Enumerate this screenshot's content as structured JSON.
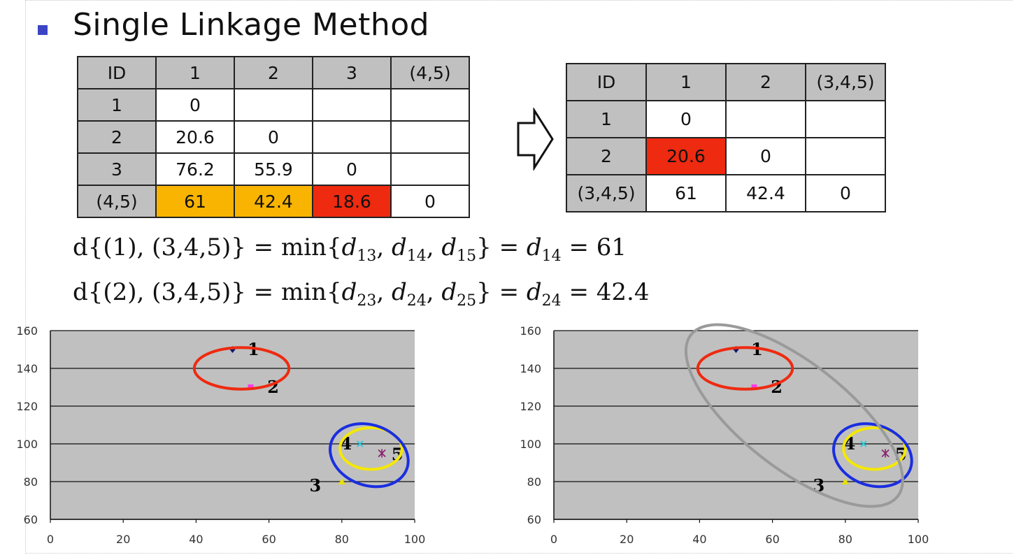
{
  "title": "Single Linkage Method",
  "table1": {
    "header": [
      "ID",
      "1",
      "2",
      "3",
      "(4,5)"
    ],
    "rows": [
      [
        "1",
        "0",
        "",
        "",
        ""
      ],
      [
        "2",
        "20.6",
        "0",
        "",
        ""
      ],
      [
        "3",
        "76.2",
        "55.9",
        "0",
        ""
      ],
      [
        "(4,5)",
        "61",
        "42.4",
        "18.6",
        "0"
      ]
    ]
  },
  "table2": {
    "header": [
      "ID",
      "1",
      "2",
      "(3,4,5)"
    ],
    "rows": [
      [
        "1",
        "0",
        "",
        ""
      ],
      [
        "2",
        "20.6",
        "0",
        ""
      ],
      [
        "(3,4,5)",
        "61",
        "42.4",
        "0"
      ]
    ]
  },
  "equations": {
    "eq1": {
      "lhs": "d{(1), (3,4,5)} = min{",
      "terms": [
        {
          "v": "d",
          "s": "13"
        },
        {
          "v": "d",
          "s": "14"
        },
        {
          "v": "d",
          "s": "15"
        }
      ],
      "mid": "} = ",
      "result": {
        "v": "d",
        "s": "14"
      },
      "value": "= 61"
    },
    "eq2": {
      "lhs": "d{(2), (3,4,5)} = min{",
      "terms": [
        {
          "v": "d",
          "s": "23"
        },
        {
          "v": "d",
          "s": "24"
        },
        {
          "v": "d",
          "s": "25"
        }
      ],
      "mid": "} = ",
      "result": {
        "v": "d",
        "s": "24"
      },
      "value": "= 42.4"
    }
  },
  "colors": {
    "highlight_orange": "#f8b400",
    "highlight_red": "#ee2a10",
    "cluster_red": "#ee2a10",
    "cluster_yellow": "#f5e800",
    "cluster_blue": "#1a2ee0",
    "cluster_gray": "#9a9a9a",
    "plot_bg": "#c0c0c0"
  },
  "chart_data": [
    {
      "type": "scatter",
      "title": "",
      "xlabel": "",
      "ylabel": "",
      "xlim": [
        0,
        100
      ],
      "ylim": [
        60,
        160
      ],
      "xticks": [
        0,
        20,
        40,
        60,
        80,
        100
      ],
      "yticks": [
        60,
        80,
        100,
        120,
        140,
        160
      ],
      "grid": "horizontal",
      "series": [
        {
          "name": "1",
          "x": 50,
          "y": 150,
          "marker": "diamond",
          "color": "#0a1a6e",
          "label": "1"
        },
        {
          "name": "2",
          "x": 55,
          "y": 130,
          "marker": "square",
          "color": "#ff38e8",
          "label": "2"
        },
        {
          "name": "3",
          "x": 80,
          "y": 80,
          "marker": "triangle",
          "color": "#e8e000",
          "label": "3"
        },
        {
          "name": "4",
          "x": 85,
          "y": 100,
          "marker": "x",
          "color": "#30c8d8",
          "label": "4"
        },
        {
          "name": "5",
          "x": 91,
          "y": 95,
          "marker": "star",
          "color": "#8a2070",
          "label": "5"
        }
      ],
      "clusters": [
        {
          "name": "cluster-1-2",
          "cx": 52.5,
          "cy": 140,
          "rx": 13,
          "ry": 11,
          "rotate": 0,
          "color": "#ee2a10"
        },
        {
          "name": "cluster-4-5",
          "cx": 88,
          "cy": 97.5,
          "rx": 8.5,
          "ry": 11,
          "rotate": 0,
          "color": "#f5e800"
        },
        {
          "name": "cluster-3-4-5",
          "cx": 87.5,
          "cy": 94,
          "rx": 11,
          "ry": 16,
          "rotate": 20,
          "color": "#1a2ee0"
        }
      ]
    },
    {
      "type": "scatter",
      "title": "",
      "xlabel": "",
      "ylabel": "",
      "xlim": [
        0,
        100
      ],
      "ylim": [
        60,
        160
      ],
      "xticks": [
        0,
        20,
        40,
        60,
        80,
        100
      ],
      "yticks": [
        60,
        80,
        100,
        120,
        140,
        160
      ],
      "grid": "horizontal",
      "series": [
        {
          "name": "1",
          "x": 50,
          "y": 150,
          "marker": "diamond",
          "color": "#0a1a6e",
          "label": "1"
        },
        {
          "name": "2",
          "x": 55,
          "y": 130,
          "marker": "square",
          "color": "#ff38e8",
          "label": "2"
        },
        {
          "name": "3",
          "x": 80,
          "y": 80,
          "marker": "triangle",
          "color": "#e8e000",
          "label": "3"
        },
        {
          "name": "4",
          "x": 85,
          "y": 100,
          "marker": "x",
          "color": "#30c8d8",
          "label": "4"
        },
        {
          "name": "5",
          "x": 91,
          "y": 95,
          "marker": "star",
          "color": "#8a2070",
          "label": "5"
        }
      ],
      "clusters": [
        {
          "name": "cluster-1-2",
          "cx": 52.5,
          "cy": 140,
          "rx": 13,
          "ry": 11,
          "rotate": 0,
          "color": "#ee2a10"
        },
        {
          "name": "cluster-4-5",
          "cx": 88,
          "cy": 97.5,
          "rx": 8.5,
          "ry": 11,
          "rotate": 0,
          "color": "#f5e800"
        },
        {
          "name": "cluster-3-4-5",
          "cx": 87.5,
          "cy": 94,
          "rx": 11,
          "ry": 16,
          "rotate": 20,
          "color": "#1a2ee0"
        },
        {
          "name": "cluster-all",
          "cx": 66,
          "cy": 115,
          "rx": 36,
          "ry": 28,
          "rotate": 38,
          "color": "#9a9a9a"
        }
      ]
    }
  ]
}
